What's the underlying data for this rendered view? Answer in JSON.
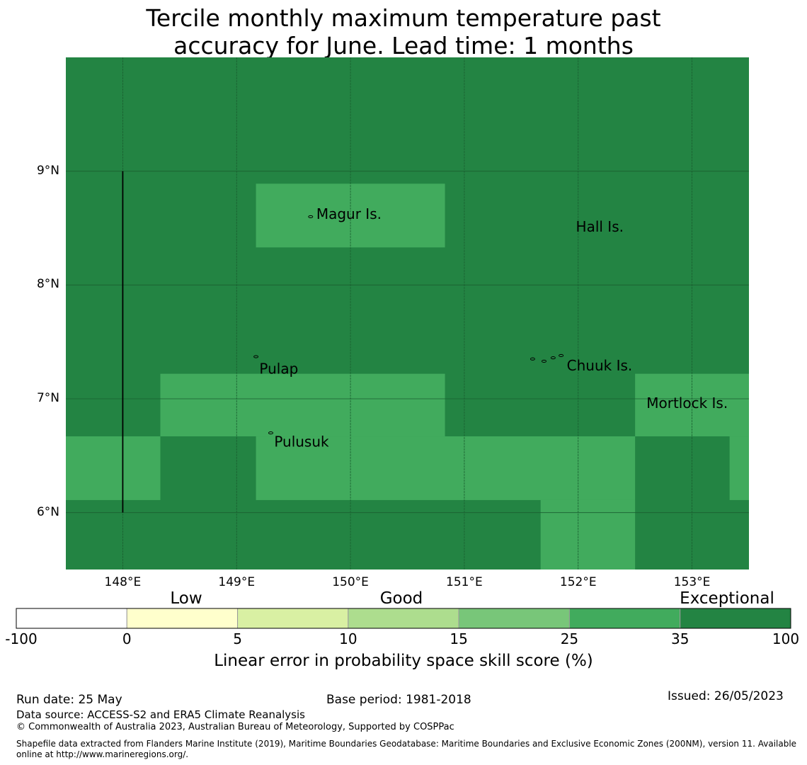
{
  "title_line1": "Tercile monthly maximum temperature past",
  "title_line2": "accuracy for June. Lead time: 1 months",
  "map": {
    "lon_range": [
      147.5,
      153.5
    ],
    "lat_range": [
      5.5,
      10.0
    ],
    "lat_ticks": [
      {
        "value": 9,
        "label": "9°N"
      },
      {
        "value": 8,
        "label": "8°N"
      },
      {
        "value": 7,
        "label": "7°N"
      },
      {
        "value": 6,
        "label": "6°N"
      }
    ],
    "lon_ticks": [
      {
        "value": 148,
        "label": "148°E"
      },
      {
        "value": 149,
        "label": "149°E"
      },
      {
        "value": 150,
        "label": "150°E"
      },
      {
        "value": 151,
        "label": "151°E"
      },
      {
        "value": 152,
        "label": "152°E"
      },
      {
        "value": 153,
        "label": "153°E"
      }
    ],
    "background_category": "exceptional",
    "colors": {
      "exceptional": "#238443",
      "high": "#41ab5d",
      "gridline": "#1a5e30",
      "boundary": "#000000"
    },
    "skill_cells": [
      {
        "lon_min": 149.17,
        "lon_max": 150.83,
        "lat_min": 8.33,
        "lat_max": 8.89,
        "category": "high"
      },
      {
        "lon_min": 148.33,
        "lon_max": 150.83,
        "lat_min": 6.67,
        "lat_max": 7.22,
        "category": "high"
      },
      {
        "lon_min": 152.5,
        "lon_max": 153.5,
        "lat_min": 6.67,
        "lat_max": 7.22,
        "category": "high"
      },
      {
        "lon_min": 147.5,
        "lon_max": 148.33,
        "lat_min": 6.11,
        "lat_max": 6.67,
        "category": "high"
      },
      {
        "lon_min": 149.17,
        "lon_max": 152.5,
        "lat_min": 6.11,
        "lat_max": 6.67,
        "category": "high"
      },
      {
        "lon_min": 153.33,
        "lon_max": 153.5,
        "lat_min": 6.11,
        "lat_max": 6.67,
        "category": "high"
      },
      {
        "lon_min": 151.67,
        "lon_max": 152.5,
        "lat_min": 5.5,
        "lat_max": 6.11,
        "category": "high"
      }
    ],
    "boundary_line": {
      "lon": 148.0,
      "lat_min": 6.0,
      "lat_max": 9.0
    },
    "places": [
      {
        "name": "Magur Is.",
        "lon": 149.7,
        "lat": 8.58
      },
      {
        "name": "Hall Is.",
        "lon": 151.98,
        "lat": 8.47
      },
      {
        "name": "Pulap",
        "lon": 149.2,
        "lat": 7.22
      },
      {
        "name": "Chuuk Is.",
        "lon": 151.9,
        "lat": 7.25
      },
      {
        "name": "Mortlock Is.",
        "lon": 152.6,
        "lat": 6.92
      },
      {
        "name": "Pulusuk",
        "lon": 149.33,
        "lat": 6.58
      }
    ],
    "islands": [
      {
        "lon": 149.17,
        "lat": 7.37
      },
      {
        "lon": 149.3,
        "lat": 6.7
      },
      {
        "lon": 149.65,
        "lat": 8.6
      },
      {
        "lon": 151.6,
        "lat": 7.35
      },
      {
        "lon": 151.7,
        "lat": 7.33
      },
      {
        "lon": 151.85,
        "lat": 7.38
      },
      {
        "lon": 151.78,
        "lat": 7.36
      }
    ]
  },
  "colorbar": {
    "bins": [
      {
        "from": "-100",
        "to": "0",
        "color": "#ffffff"
      },
      {
        "from": "0",
        "to": "5",
        "color": "#ffffcc"
      },
      {
        "from": "5",
        "to": "10",
        "color": "#d9f0a3"
      },
      {
        "from": "10",
        "to": "15",
        "color": "#addd8e"
      },
      {
        "from": "15",
        "to": "25",
        "color": "#78c679"
      },
      {
        "from": "25",
        "to": "35",
        "color": "#41ab5d"
      },
      {
        "from": "35",
        "to": "100",
        "color": "#238443"
      }
    ],
    "tick_labels": [
      "-100",
      "0",
      "5",
      "10",
      "15",
      "25",
      "35",
      "100"
    ],
    "category_labels": {
      "low": "Low",
      "good": "Good",
      "exceptional": "Exceptional"
    },
    "axis_label": "Linear error in probability space skill score (%)"
  },
  "footer": {
    "run_date": "Run date: 25 May",
    "base_period": "Base period: 1981-2018",
    "issued": "Issued: 26/05/2023",
    "data_source": "Data source: ACCESS-S2 and ERA5 Climate Reanalysis",
    "copyright": "© Commonwealth of Australia 2023, Australian Bureau of Meteorology, Supported by COSPPac",
    "shapefile_line1": "Shapefile data extracted from Flanders Marine Institute (2019), Maritime Boundaries Geodatabase: Maritime Boundaries and Exclusive Economic Zones (200NM), version 11. Available",
    "shapefile_line2": "online at http://www.marineregions.org/."
  }
}
